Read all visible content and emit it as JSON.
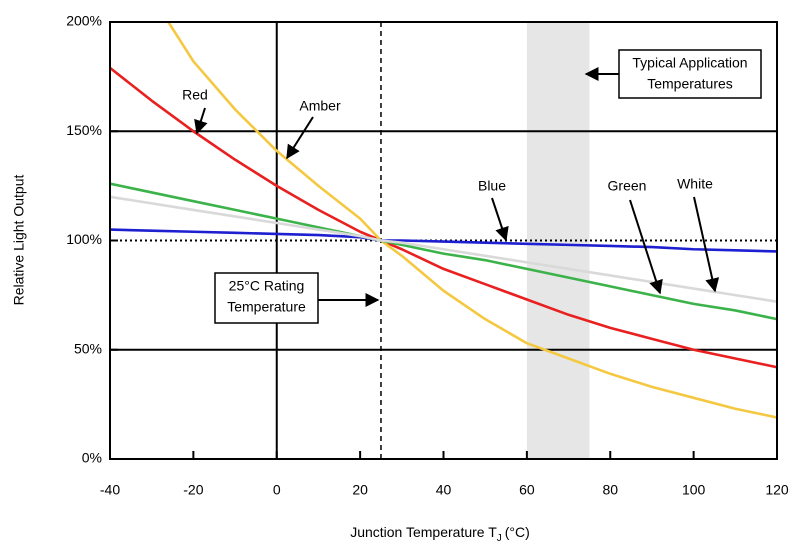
{
  "chart_data": {
    "type": "line",
    "y_label": "Relative Light Output",
    "x_label": {
      "text": "Junction Temperature T",
      "subscript": "J",
      "suffix": "(°C)"
    },
    "xlim": [
      -40,
      120
    ],
    "ylim": [
      0,
      200
    ],
    "xticks": [
      -40,
      -20,
      0,
      20,
      40,
      60,
      80,
      100,
      120
    ],
    "yticks": [
      {
        "value": 0,
        "label": "0%"
      },
      {
        "value": 50,
        "label": "50%"
      },
      {
        "value": 100,
        "label": "100%"
      },
      {
        "value": 150,
        "label": "150%"
      },
      {
        "value": 200,
        "label": "200%"
      }
    ],
    "hlines": [
      {
        "value": 50,
        "style": "solid"
      },
      {
        "value": 100,
        "style": "dotted"
      },
      {
        "value": 150,
        "style": "solid"
      }
    ],
    "vlines": [
      {
        "value": 0,
        "style": "solid"
      },
      {
        "value": 25,
        "style": "dashed"
      }
    ],
    "shaded_band": [
      60,
      75
    ],
    "x": [
      -40,
      -30,
      -20,
      -10,
      0,
      10,
      20,
      25,
      30,
      40,
      50,
      60,
      70,
      80,
      90,
      100,
      110,
      120
    ],
    "series": [
      {
        "name": "Red",
        "color": "#e8201f",
        "values": [
          179,
          164,
          150,
          137,
          125,
          114,
          104,
          100,
          96,
          87,
          80,
          73,
          66,
          60,
          55,
          50,
          46,
          42
        ]
      },
      {
        "name": "Amber",
        "color": "#f5c842",
        "x": [
          -26,
          -20,
          -10,
          0,
          10,
          20,
          25,
          30,
          40,
          50,
          60,
          70,
          80,
          90,
          100,
          110,
          120
        ],
        "values": [
          200,
          182,
          160,
          141,
          125,
          110,
          100,
          93,
          77,
          64,
          53,
          46,
          39,
          33,
          28,
          23,
          19
        ]
      },
      {
        "name": "Blue",
        "color": "#1d1fd0",
        "values": [
          105,
          104.5,
          104,
          103.5,
          103,
          102.5,
          101.5,
          100,
          100,
          99.5,
          99,
          98.5,
          98,
          97.5,
          97,
          96,
          95.5,
          95
        ]
      },
      {
        "name": "Green",
        "color": "#3cb34a",
        "values": [
          126,
          122,
          118,
          114,
          110,
          106,
          102,
          100,
          98,
          94,
          91,
          87,
          83,
          79,
          75,
          71,
          68,
          64
        ]
      },
      {
        "name": "White",
        "color": "#d9d9d9",
        "values": [
          120,
          117,
          114,
          111,
          108,
          105,
          102,
          100,
          99,
          96,
          93,
          90,
          87,
          84,
          81,
          78,
          75,
          72
        ]
      }
    ],
    "annotations": [
      {
        "lines": [
          "25°C Rating",
          "Temperature"
        ]
      },
      {
        "lines": [
          "Typical Application",
          "Temperatures"
        ]
      }
    ]
  }
}
